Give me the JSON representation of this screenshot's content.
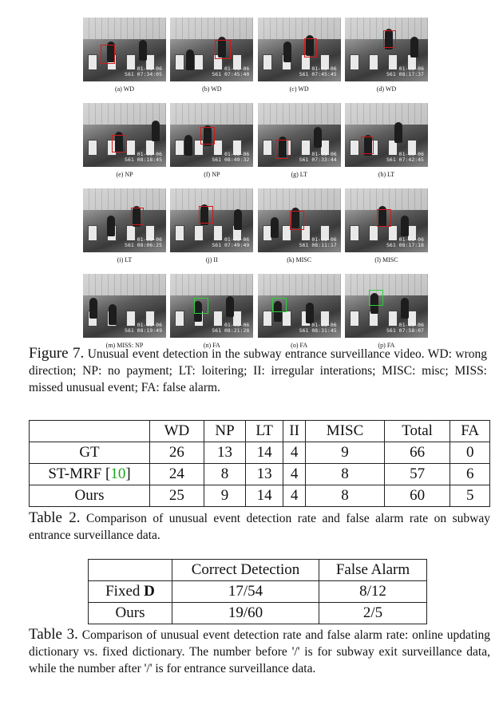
{
  "figure": {
    "panels": [
      {
        "label": "(a) WD",
        "date": "01-03-06",
        "time": "S61 07:34:05",
        "box_color": "#d11b1b"
      },
      {
        "label": "(b) WD",
        "date": "01-03-06",
        "time": "S61 07:45:40",
        "box_color": "#d11b1b"
      },
      {
        "label": "(c) WD",
        "date": "01-03-06",
        "time": "S61 07:45:45",
        "box_color": "#d11b1b"
      },
      {
        "label": "(d) WD",
        "date": "01-03-06",
        "time": "S61 08:17:37",
        "box_color": "#d11b1b"
      },
      {
        "label": "(e) NP",
        "date": "01-03-06",
        "time": "S61 08:18:45",
        "box_color": "#d11b1b"
      },
      {
        "label": "(f) NP",
        "date": "01-03-06",
        "time": "S61 08:49:32",
        "box_color": "#d11b1b"
      },
      {
        "label": "(g) LT",
        "date": "01-03-06",
        "time": "S61 07:33:44",
        "box_color": "#d11b1b"
      },
      {
        "label": "(h) LT",
        "date": "01-03-06",
        "time": "S61 07:42:45",
        "box_color": "#d11b1b"
      },
      {
        "label": "(i) LT",
        "date": "01-03-06",
        "time": "S61 08:06:25",
        "box_color": "#d11b1b"
      },
      {
        "label": "(j) II",
        "date": "01-03-06",
        "time": "S61 07:49:49",
        "box_color": "#d11b1b"
      },
      {
        "label": "(k) MISC",
        "date": "01-03-06",
        "time": "S61 08:11:17",
        "box_color": "#d11b1b"
      },
      {
        "label": "(l) MISC",
        "date": "01-03-06",
        "time": "S61 08:17:18",
        "box_color": "#d11b1b"
      },
      {
        "label": "(m) MISS: NP",
        "date": "01-03-06",
        "time": "S61 08:19:49",
        "box_color": ""
      },
      {
        "label": "(n) FA",
        "date": "01-03-06",
        "time": "S61 08:21:28",
        "box_color": "#2bd13b"
      },
      {
        "label": "(o) FA",
        "date": "01-03-06",
        "time": "S61 08:31:45",
        "box_color": "#2bd13b"
      },
      {
        "label": "(p) FA",
        "date": "01-03-06",
        "time": "S61 07:58:07",
        "box_color": "#2bd13b"
      }
    ],
    "caption_lead": "Figure 7.",
    "caption_text": "Unusual event detection in the subway entrance surveillance video. WD: wrong direction; NP: no payment; LT: loitering; II: irregular interations; MISC: misc; MISS: missed unusual event; FA: false alarm."
  },
  "table2": {
    "headers": [
      "",
      "WD",
      "NP",
      "LT",
      "II",
      "MISC",
      "Total",
      "FA"
    ],
    "rows": [
      {
        "method": "GT",
        "ref": "",
        "values": [
          "26",
          "13",
          "14",
          "4",
          "9",
          "66",
          "0"
        ]
      },
      {
        "method": "ST-MRF [",
        "ref": "10",
        "ref_close": "]",
        "values": [
          "24",
          "8",
          "13",
          "4",
          "8",
          "57",
          "6"
        ]
      },
      {
        "method": "Ours",
        "ref": "",
        "values": [
          "25",
          "9",
          "14",
          "4",
          "8",
          "60",
          "5"
        ]
      }
    ],
    "caption_lead": "Table 2.",
    "caption_text": "Comparison of unusual event detection rate and false alarm rate on subway entrance surveillance data."
  },
  "table3": {
    "headers": [
      "",
      "Correct Detection",
      "False Alarm"
    ],
    "rows": [
      {
        "method": "Fixed ",
        "method_bold": "D",
        "values": [
          "17/54",
          "8/12"
        ]
      },
      {
        "method": "Ours",
        "method_bold": "",
        "values": [
          "19/60",
          "2/5"
        ]
      }
    ],
    "caption_lead": "Table 3.",
    "caption_text": "Comparison of unusual event detection rate and false alarm rate: online updating dictionary vs. fixed dictionary. The number before '/' is for subway exit surveillance data, while the number after '/' is for entrance surveillance data."
  }
}
